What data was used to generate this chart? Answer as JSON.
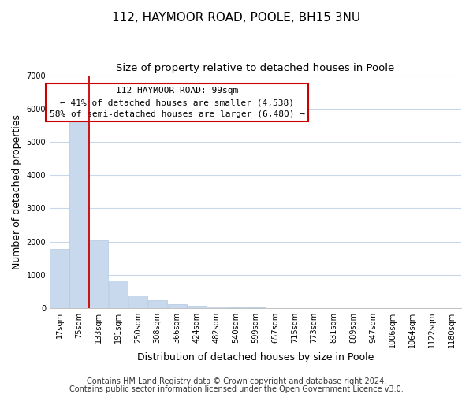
{
  "title": "112, HAYMOOR ROAD, POOLE, BH15 3NU",
  "subtitle": "Size of property relative to detached houses in Poole",
  "xlabel": "Distribution of detached houses by size in Poole",
  "ylabel": "Number of detached properties",
  "bar_labels": [
    "17sqm",
    "75sqm",
    "133sqm",
    "191sqm",
    "250sqm",
    "308sqm",
    "366sqm",
    "424sqm",
    "482sqm",
    "540sqm",
    "599sqm",
    "657sqm",
    "715sqm",
    "773sqm",
    "831sqm",
    "889sqm",
    "947sqm",
    "1006sqm",
    "1064sqm",
    "1122sqm",
    "1180sqm"
  ],
  "bar_heights": [
    1780,
    5750,
    2040,
    830,
    370,
    230,
    115,
    75,
    50,
    30,
    15,
    8,
    5,
    0,
    0,
    0,
    0,
    0,
    0,
    0,
    0
  ],
  "bar_color": "#c8d9ee",
  "bar_edge_color": "#b0c8e0",
  "highlight_bar_index": 1,
  "vline_color": "#cc0000",
  "annotation_title": "112 HAYMOOR ROAD: 99sqm",
  "annotation_line1": "← 41% of detached houses are smaller (4,538)",
  "annotation_line2": "58% of semi-detached houses are larger (6,480) →",
  "annotation_box_color": "#ffffff",
  "annotation_box_edge": "#cc0000",
  "ylim": [
    0,
    7000
  ],
  "yticks": [
    0,
    1000,
    2000,
    3000,
    4000,
    5000,
    6000,
    7000
  ],
  "footer_line1": "Contains HM Land Registry data © Crown copyright and database right 2024.",
  "footer_line2": "Contains public sector information licensed under the Open Government Licence v3.0.",
  "bg_color": "#ffffff",
  "grid_color": "#c8d8e8",
  "title_fontsize": 11,
  "subtitle_fontsize": 9.5,
  "axis_label_fontsize": 9,
  "tick_fontsize": 7,
  "annotation_fontsize": 8,
  "footer_fontsize": 7
}
